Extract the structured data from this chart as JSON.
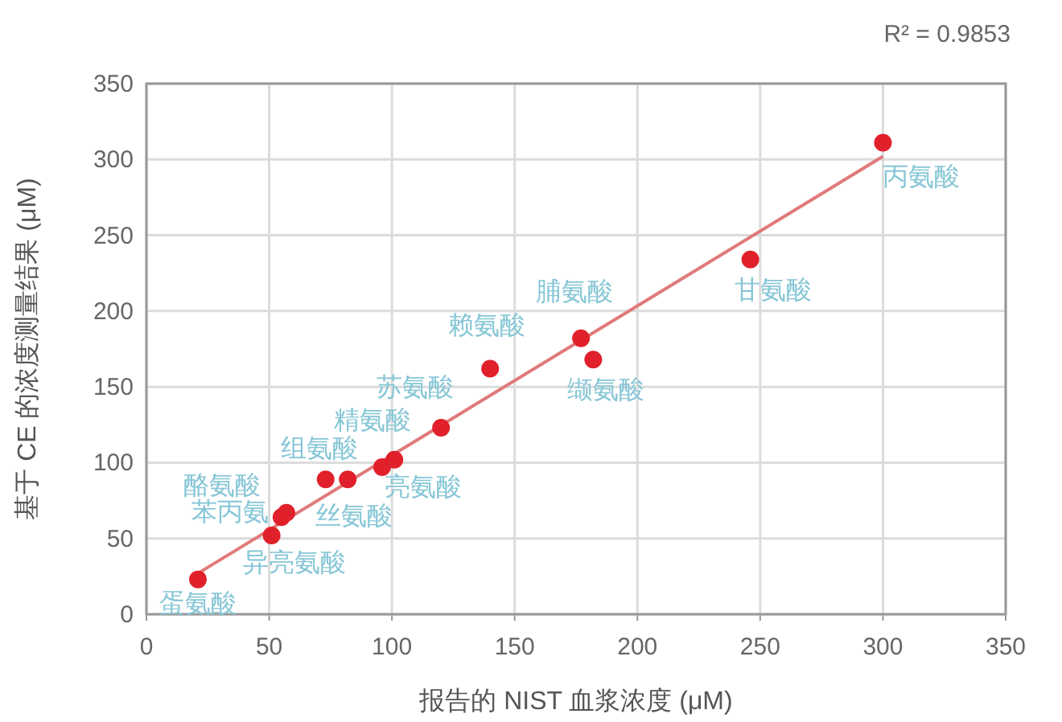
{
  "chart_data": {
    "type": "scatter",
    "xlabel": "报告的 NIST 血浆浓度 (μM)",
    "ylabel": "基于 CE 的浓度测量结果 (μM)",
    "xlim": [
      0,
      350
    ],
    "ylim": [
      0,
      350
    ],
    "xticks": [
      0,
      50,
      100,
      150,
      200,
      250,
      300,
      350
    ],
    "yticks": [
      0,
      50,
      100,
      150,
      200,
      250,
      300,
      350
    ],
    "grid": true,
    "series": [
      {
        "marker": "circle",
        "color": "#e0202a",
        "x": [
          21,
          51,
          55,
          57,
          73,
          82,
          96,
          101,
          120,
          140,
          177,
          182,
          246,
          300
        ],
        "values": [
          23,
          52,
          64,
          67,
          89,
          89,
          97,
          102,
          123,
          162,
          182,
          168,
          234,
          311
        ]
      },
      {
        "type": "line",
        "color": "#e07a7a",
        "x": [
          21,
          300
        ],
        "values": [
          27,
          302
        ],
        "line_style": "solid"
      }
    ],
    "annotations": [
      {
        "text": "蛋氨酸",
        "x": 21,
        "y": 23
      },
      {
        "text": "异亮氨酸",
        "x": 51,
        "y": 52
      },
      {
        "text": "苯丙氨",
        "x": 55,
        "y": 64
      },
      {
        "text": "酪氨酸",
        "x": 57,
        "y": 67
      },
      {
        "text": "组氨酸",
        "x": 73,
        "y": 89
      },
      {
        "text": "丝氨酸",
        "x": 82,
        "y": 89
      },
      {
        "text": "精氨酸",
        "x": 96,
        "y": 97
      },
      {
        "text": "亮氨酸",
        "x": 101,
        "y": 102
      },
      {
        "text": "苏氨酸",
        "x": 120,
        "y": 123
      },
      {
        "text": "赖氨酸",
        "x": 140,
        "y": 162
      },
      {
        "text": "脯氨酸",
        "x": 177,
        "y": 182
      },
      {
        "text": "缬氨酸",
        "x": 182,
        "y": 168
      },
      {
        "text": "甘氨酸",
        "x": 246,
        "y": 234
      },
      {
        "text": "丙氨酸",
        "x": 300,
        "y": 311
      },
      "R² = 0.9853"
    ]
  }
}
